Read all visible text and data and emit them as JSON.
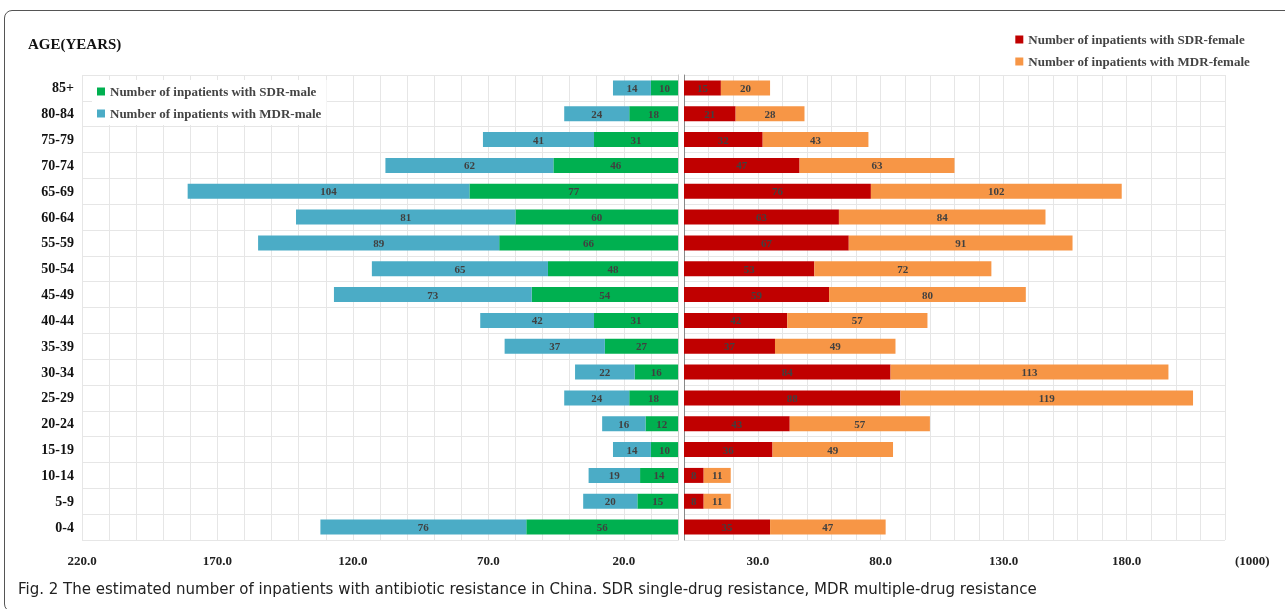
{
  "chart_data": [
    {
      "type": "bar",
      "orientation": "horizontal",
      "stacked": true,
      "ylabel": "AGE(YEARS)",
      "annotations": [
        "Fig. 2  The estimated number of inpatients with antibiotic resistance in China. SDR single-drug resistance, MDR multiple-drug resistance"
      ],
      "categories": [
        "85+",
        "80-84",
        "75-79",
        "70-74",
        "65-69",
        "60-64",
        "55-59",
        "50-54",
        "45-49",
        "40-44",
        "35-39",
        "30-34",
        "25-29",
        "20-24",
        "15-19",
        "10-14",
        "5-9",
        "0-4"
      ],
      "series": [
        {
          "name": "Number of inpatients with SDR-male",
          "color": "#00b050",
          "values": [
            10,
            18,
            31,
            46,
            77,
            60,
            66,
            48,
            54,
            31,
            27,
            16,
            18,
            12,
            10,
            14,
            15,
            56
          ]
        },
        {
          "name": "Number of inpatients with MDR-male",
          "color": "#4bacc6",
          "values": [
            14,
            24,
            41,
            62,
            104,
            81,
            89,
            65,
            73,
            42,
            37,
            22,
            24,
            16,
            14,
            19,
            20,
            76
          ]
        }
      ],
      "data_labels": true,
      "xlim": [
        220,
        0
      ],
      "xticks": [
        {
          "value": 220,
          "label": "220.0"
        },
        {
          "value": 210,
          "label": null
        },
        {
          "value": 200,
          "label": null
        },
        {
          "value": 190,
          "label": null
        },
        {
          "value": 180,
          "label": null
        },
        {
          "value": 170,
          "label": "170.0"
        },
        {
          "value": 160,
          "label": null
        },
        {
          "value": 150,
          "label": null
        },
        {
          "value": 140,
          "label": null
        },
        {
          "value": 130,
          "label": null
        },
        {
          "value": 120,
          "label": "120.0"
        },
        {
          "value": 110,
          "label": null
        },
        {
          "value": 100,
          "label": null
        },
        {
          "value": 90,
          "label": null
        },
        {
          "value": 80,
          "label": null
        },
        {
          "value": 70,
          "label": "70.0"
        },
        {
          "value": 60,
          "label": null
        },
        {
          "value": 50,
          "label": null
        },
        {
          "value": 40,
          "label": null
        },
        {
          "value": 30,
          "label": null
        },
        {
          "value": 20,
          "label": "20.0"
        },
        {
          "value": 10,
          "label": null
        },
        {
          "value": 0,
          "label": null
        }
      ],
      "grid": true,
      "legend": "top left"
    },
    {
      "type": "bar",
      "orientation": "horizontal",
      "stacked": true,
      "xlabel": "(1000)",
      "categories": [
        null,
        null,
        null,
        null,
        null,
        null,
        null,
        null,
        null,
        null,
        null,
        null,
        null,
        null,
        null,
        null,
        null,
        null
      ],
      "series": [
        {
          "name": "Number of inpatients with SDR-female",
          "color": "#c00000",
          "values": [
            15,
            21,
            32,
            47,
            76,
            63,
            67,
            53,
            59,
            42,
            37,
            84,
            88,
            43,
            36,
            8,
            8,
            35
          ]
        },
        {
          "name": "Number of inpatients with MDR-female",
          "color": "#f79646",
          "values": [
            20,
            28,
            43,
            63,
            102,
            84,
            91,
            72,
            80,
            57,
            49,
            113,
            119,
            57,
            49,
            11,
            11,
            47
          ]
        }
      ],
      "data_labels": true,
      "xlim": [
        0,
        220
      ],
      "xticks": [
        {
          "value": 0,
          "label": null
        },
        {
          "value": 10,
          "label": null
        },
        {
          "value": 20,
          "label": null
        },
        {
          "value": 30,
          "label": "30.0"
        },
        {
          "value": 40,
          "label": null
        },
        {
          "value": 50,
          "label": null
        },
        {
          "value": 60,
          "label": null
        },
        {
          "value": 70,
          "label": null
        },
        {
          "value": 80,
          "label": "80.0"
        },
        {
          "value": 90,
          "label": null
        },
        {
          "value": 100,
          "label": null
        },
        {
          "value": 110,
          "label": null
        },
        {
          "value": 120,
          "label": null
        },
        {
          "value": 130,
          "label": "130.0"
        },
        {
          "value": 140,
          "label": null
        },
        {
          "value": 150,
          "label": null
        },
        {
          "value": 160,
          "label": null
        },
        {
          "value": 170,
          "label": null
        },
        {
          "value": 180,
          "label": "180.0"
        },
        {
          "value": 190,
          "label": null
        },
        {
          "value": 200,
          "label": null
        },
        {
          "value": 210,
          "label": null
        },
        {
          "value": 220,
          "label": null
        }
      ],
      "grid": true,
      "legend": "top right",
      "tick_labels": "x"
    }
  ]
}
